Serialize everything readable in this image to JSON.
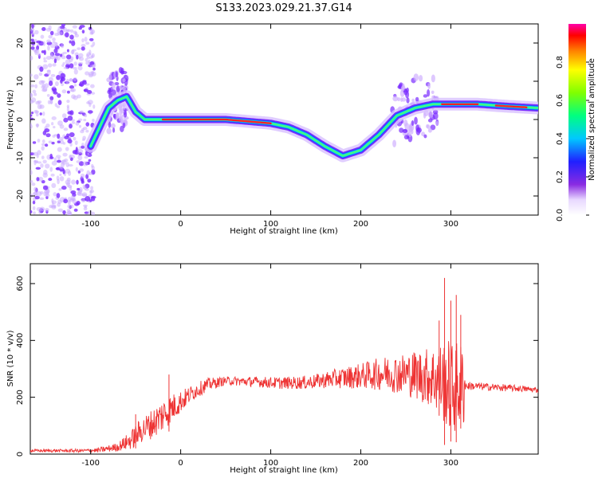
{
  "title": "S133.2023.029.21.37.G14",
  "colors": {
    "snr_line": "#ee3333",
    "ridge": "#ff2222",
    "noise": "#7b2cff",
    "axis": "#000000"
  },
  "chart_data": [
    {
      "type": "heatmap",
      "xlabel": "Height of straight line (km)",
      "ylabel": "Frequency (Hz)",
      "xlim": [
        -167,
        397
      ],
      "ylim": [
        -25,
        25
      ],
      "x_ticks": [
        -100,
        0,
        100,
        200,
        300
      ],
      "y_ticks": [
        -20,
        -10,
        0,
        10,
        20
      ],
      "grid": false,
      "colorbar": {
        "label": "Normalized spectral amplitude",
        "range": [
          0,
          1
        ],
        "ticks": [
          "0.0",
          "0.2",
          "0.4",
          "0.6",
          "0.8"
        ],
        "colormap": "rainbow"
      },
      "ridge": {
        "x": [
          -100,
          -90,
          -80,
          -70,
          -60,
          -50,
          -40,
          -30,
          -20,
          0,
          50,
          100,
          120,
          140,
          160,
          180,
          200,
          220,
          240,
          260,
          280,
          300,
          330,
          360,
          397
        ],
        "y": [
          -7,
          -2,
          3,
          5,
          6,
          2,
          0,
          0,
          0,
          0,
          0,
          -1,
          -2,
          -4,
          -7,
          -9.5,
          -8,
          -4,
          1,
          3,
          4,
          4,
          4,
          3.5,
          3
        ]
      },
      "noise_region": {
        "x_range": [
          -167,
          -100
        ],
        "level": "low"
      }
    },
    {
      "type": "line",
      "xlabel": "Height of straight line (km)",
      "ylabel": "SNR (10 * v/v)",
      "xlim": [
        -167,
        397
      ],
      "ylim": [
        0,
        670
      ],
      "x_ticks": [
        -100,
        0,
        100,
        200,
        300
      ],
      "y_ticks": [
        0,
        200,
        400,
        600
      ],
      "grid": false,
      "series": [
        {
          "x": [
            -167,
            -140,
            -110,
            -90,
            -70,
            -55,
            -45,
            -30,
            -15,
            0,
            15,
            30,
            50,
            80,
            110,
            140,
            170,
            200,
            230,
            260,
            280,
            295,
            300,
            310,
            320,
            350,
            380,
            397
          ],
          "y": [
            12,
            12,
            12,
            14,
            25,
            50,
            80,
            110,
            150,
            185,
            220,
            245,
            258,
            255,
            250,
            252,
            265,
            275,
            285,
            280,
            270,
            250,
            230,
            240,
            240,
            235,
            230,
            225
          ]
        }
      ],
      "noise_envelope": {
        "x": [
          -167,
          -100,
          -70,
          -50,
          -20,
          10,
          50,
          150,
          200,
          250,
          280,
          300,
          315,
          316,
          397
        ],
        "amp": [
          5,
          6,
          15,
          40,
          60,
          30,
          15,
          25,
          45,
          75,
          110,
          170,
          150,
          15,
          10
        ]
      },
      "spikes": [
        {
          "x": 293,
          "y": 620
        },
        {
          "x": 300,
          "y": 540
        },
        {
          "x": 306,
          "y": 560
        },
        {
          "x": 311,
          "y": 490
        },
        {
          "x": 287,
          "y": 470
        },
        {
          "x": -13,
          "y": 280
        },
        {
          "x": -50,
          "y": 140
        }
      ]
    }
  ]
}
